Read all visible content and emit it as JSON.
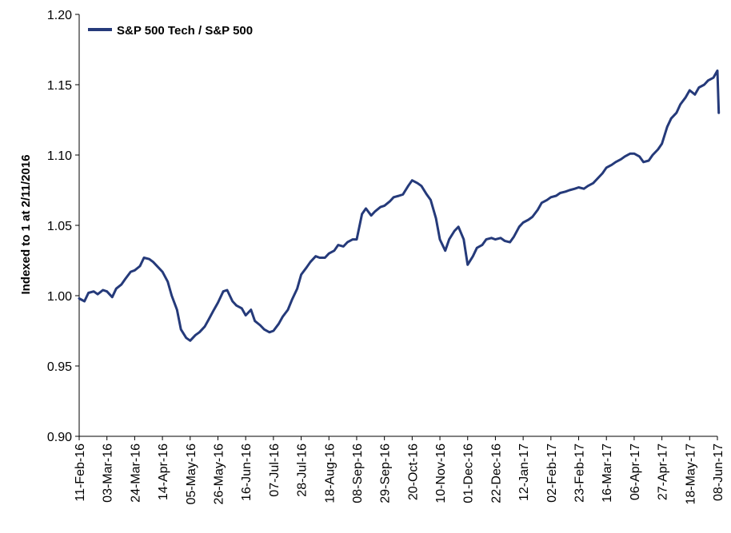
{
  "chart_data": {
    "type": "line",
    "title": "",
    "ylabel": "Indexed to 1 at 2/11/2016",
    "xlabel": "",
    "ylim": [
      0.9,
      1.2
    ],
    "yticks": [
      "0.90",
      "0.95",
      "1.00",
      "1.05",
      "1.10",
      "1.15",
      "1.20"
    ],
    "xticks": [
      "11-Feb-16",
      "03-Mar-16",
      "24-Mar-16",
      "14-Apr-16",
      "05-May-16",
      "26-May-16",
      "16-Jun-16",
      "07-Jul-16",
      "28-Jul-16",
      "18-Aug-16",
      "08-Sep-16",
      "29-Sep-16",
      "20-Oct-16",
      "10-Nov-16",
      "01-Dec-16",
      "22-Dec-16",
      "12-Jan-17",
      "02-Feb-17",
      "23-Feb-17",
      "16-Mar-17",
      "06-Apr-17",
      "27-Apr-17",
      "18-May-17",
      "08-Jun-17"
    ],
    "grid": false,
    "legend_position": "top-left",
    "series": [
      {
        "name": "S&P 500 Tech / S&P 500",
        "color": "#253a7a",
        "x": [
          "11-Feb-16",
          "15-Feb-16",
          "18-Feb-16",
          "22-Feb-16",
          "25-Feb-16",
          "29-Feb-16",
          "03-Mar-16",
          "07-Mar-16",
          "10-Mar-16",
          "14-Mar-16",
          "17-Mar-16",
          "21-Mar-16",
          "24-Mar-16",
          "28-Mar-16",
          "31-Mar-16",
          "04-Apr-16",
          "07-Apr-16",
          "11-Apr-16",
          "14-Apr-16",
          "18-Apr-16",
          "21-Apr-16",
          "25-Apr-16",
          "28-Apr-16",
          "02-May-16",
          "05-May-16",
          "09-May-16",
          "12-May-16",
          "16-May-16",
          "19-May-16",
          "23-May-16",
          "26-May-16",
          "30-May-16",
          "02-Jun-16",
          "06-Jun-16",
          "09-Jun-16",
          "13-Jun-16",
          "16-Jun-16",
          "20-Jun-16",
          "23-Jun-16",
          "27-Jun-16",
          "30-Jun-16",
          "04-Jul-16",
          "07-Jul-16",
          "11-Jul-16",
          "14-Jul-16",
          "18-Jul-16",
          "21-Jul-16",
          "25-Jul-16",
          "28-Jul-16",
          "01-Aug-16",
          "04-Aug-16",
          "08-Aug-16",
          "11-Aug-16",
          "15-Aug-16",
          "18-Aug-16",
          "22-Aug-16",
          "25-Aug-16",
          "29-Aug-16",
          "01-Sep-16",
          "05-Sep-16",
          "08-Sep-16",
          "12-Sep-16",
          "15-Sep-16",
          "19-Sep-16",
          "22-Sep-16",
          "26-Sep-16",
          "29-Sep-16",
          "03-Oct-16",
          "06-Oct-16",
          "10-Oct-16",
          "13-Oct-16",
          "17-Oct-16",
          "20-Oct-16",
          "24-Oct-16",
          "27-Oct-16",
          "31-Oct-16",
          "03-Nov-16",
          "07-Nov-16",
          "10-Nov-16",
          "14-Nov-16",
          "17-Nov-16",
          "21-Nov-16",
          "24-Nov-16",
          "28-Nov-16",
          "01-Dec-16",
          "05-Dec-16",
          "08-Dec-16",
          "12-Dec-16",
          "15-Dec-16",
          "19-Dec-16",
          "22-Dec-16",
          "26-Dec-16",
          "29-Dec-16",
          "02-Jan-17",
          "05-Jan-17",
          "09-Jan-17",
          "12-Jan-17",
          "16-Jan-17",
          "19-Jan-17",
          "23-Jan-17",
          "26-Jan-17",
          "30-Jan-17",
          "02-Feb-17",
          "06-Feb-17",
          "09-Feb-17",
          "13-Feb-17",
          "16-Feb-17",
          "20-Feb-17",
          "23-Feb-17",
          "27-Feb-17",
          "02-Mar-17",
          "06-Mar-17",
          "09-Mar-17",
          "13-Mar-17",
          "16-Mar-17",
          "20-Mar-17",
          "23-Mar-17",
          "27-Mar-17",
          "30-Mar-17",
          "03-Apr-17",
          "06-Apr-17",
          "10-Apr-17",
          "13-Apr-17",
          "17-Apr-17",
          "20-Apr-17",
          "24-Apr-17",
          "27-Apr-17",
          "01-May-17",
          "04-May-17",
          "08-May-17",
          "11-May-17",
          "15-May-17",
          "18-May-17",
          "22-May-17",
          "25-May-17",
          "29-May-17",
          "01-Jun-17",
          "05-Jun-17",
          "08-Jun-17",
          "09-Jun-17"
        ],
        "values": [
          0.998,
          0.996,
          1.002,
          1.003,
          1.001,
          1.004,
          1.003,
          0.999,
          1.005,
          1.008,
          1.012,
          1.017,
          1.018,
          1.021,
          1.027,
          1.026,
          1.024,
          1.02,
          1.017,
          1.01,
          1.0,
          0.99,
          0.976,
          0.97,
          0.968,
          0.972,
          0.974,
          0.978,
          0.983,
          0.99,
          0.995,
          1.003,
          1.004,
          0.996,
          0.993,
          0.991,
          0.986,
          0.99,
          0.982,
          0.979,
          0.976,
          0.974,
          0.975,
          0.98,
          0.985,
          0.99,
          0.997,
          1.005,
          1.015,
          1.02,
          1.024,
          1.028,
          1.027,
          1.027,
          1.03,
          1.032,
          1.036,
          1.035,
          1.038,
          1.04,
          1.04,
          1.058,
          1.062,
          1.057,
          1.06,
          1.063,
          1.064,
          1.067,
          1.07,
          1.071,
          1.072,
          1.078,
          1.082,
          1.08,
          1.078,
          1.072,
          1.068,
          1.055,
          1.04,
          1.032,
          1.04,
          1.046,
          1.049,
          1.04,
          1.022,
          1.028,
          1.034,
          1.036,
          1.04,
          1.041,
          1.04,
          1.041,
          1.039,
          1.038,
          1.042,
          1.049,
          1.052,
          1.054,
          1.056,
          1.061,
          1.066,
          1.068,
          1.07,
          1.071,
          1.073,
          1.074,
          1.075,
          1.076,
          1.077,
          1.076,
          1.078,
          1.08,
          1.083,
          1.087,
          1.091,
          1.093,
          1.095,
          1.097,
          1.099,
          1.101,
          1.101,
          1.099,
          1.095,
          1.096,
          1.1,
          1.104,
          1.108,
          1.12,
          1.126,
          1.13,
          1.136,
          1.141,
          1.146,
          1.143,
          1.148,
          1.15,
          1.153,
          1.155,
          1.16,
          1.13
        ]
      }
    ]
  }
}
